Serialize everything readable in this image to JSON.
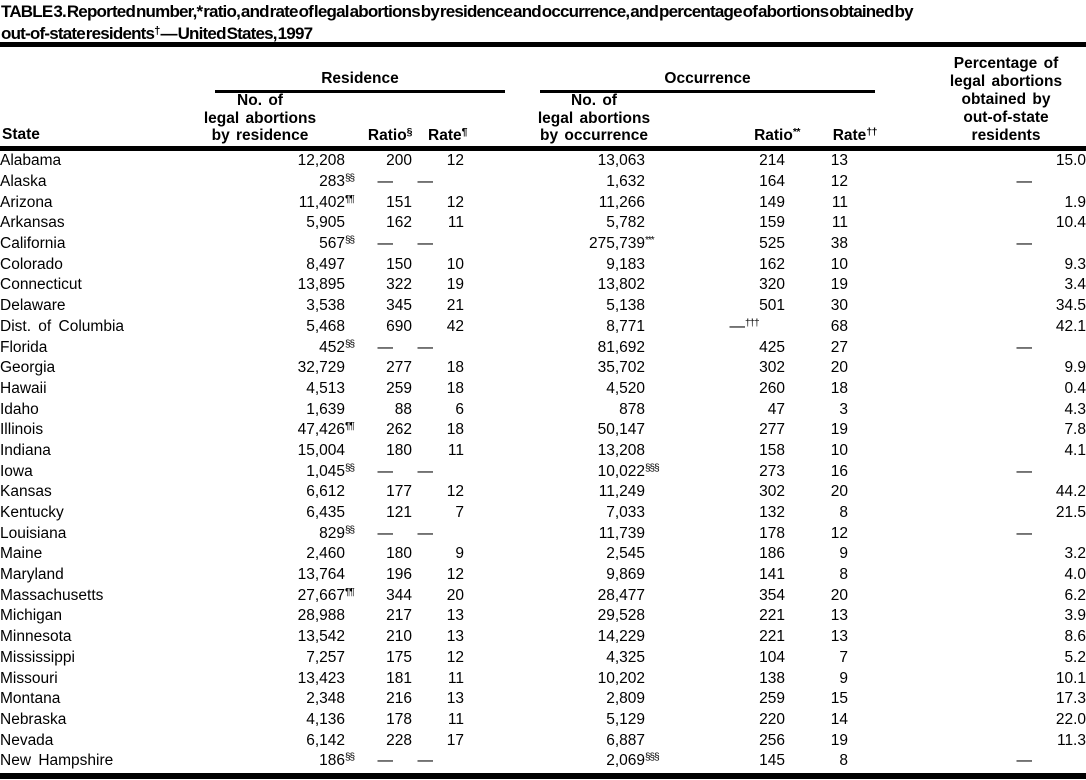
{
  "title": {
    "part1": "TABLE 3. Reported number,* ratio, and rate of legal abortions by residence and occurrence, and percentage of abortions obtained by",
    "part2_pre": "out-of-state residents",
    "part2_sup": "†",
    "part2_post": " — United States, 1997"
  },
  "table": {
    "group_headers": {
      "residence": "Residence",
      "occurrence": "Occurrence"
    },
    "columns": {
      "state": "State",
      "res_no_lines": [
        "No. of",
        "legal abortions",
        "by residence"
      ],
      "res_ratio": {
        "label": "Ratio",
        "sup": "§"
      },
      "res_rate": {
        "label": "Rate",
        "sup": "¶"
      },
      "occ_no_lines": [
        "No. of",
        "legal abortions",
        "by occurrence"
      ],
      "occ_ratio": {
        "label": "Ratio",
        "sup": "**"
      },
      "occ_rate": {
        "label": "Rate",
        "sup": "††"
      },
      "pct_lines": [
        "Percentage of",
        "legal abortions",
        "obtained by",
        "out-of-state",
        "residents"
      ]
    },
    "rows": [
      [
        "Alabama",
        "12,208",
        "200",
        "12",
        "13,063",
        "214",
        "13",
        "15.0"
      ],
      [
        "Alaska",
        [
          "283",
          "§§"
        ],
        "—",
        "—",
        "1,632",
        "164",
        "12",
        "—"
      ],
      [
        "Arizona",
        [
          "11,402",
          "¶¶"
        ],
        "151",
        "12",
        "11,266",
        "149",
        "11",
        "1.9"
      ],
      [
        "Arkansas",
        "5,905",
        "162",
        "11",
        "5,782",
        "159",
        "11",
        "10.4"
      ],
      [
        "California",
        [
          "567",
          "§§"
        ],
        "—",
        "—",
        [
          "275,739",
          "***"
        ],
        "525",
        "38",
        "—"
      ],
      [
        "Colorado",
        "8,497",
        "150",
        "10",
        "9,183",
        "162",
        "10",
        "9.3"
      ],
      [
        "Connecticut",
        "13,895",
        "322",
        "19",
        "13,802",
        "320",
        "19",
        "3.4"
      ],
      [
        "Delaware",
        "3,538",
        "345",
        "21",
        "5,138",
        "501",
        "30",
        "34.5"
      ],
      [
        "Dist. of Columbia",
        "5,468",
        "690",
        "42",
        "8,771",
        [
          "—",
          "†††"
        ],
        "68",
        "42.1"
      ],
      [
        "Florida",
        [
          "452",
          "§§"
        ],
        "—",
        "—",
        "81,692",
        "425",
        "27",
        "—"
      ],
      [
        "Georgia",
        "32,729",
        "277",
        "18",
        "35,702",
        "302",
        "20",
        "9.9"
      ],
      [
        "Hawaii",
        "4,513",
        "259",
        "18",
        "4,520",
        "260",
        "18",
        "0.4"
      ],
      [
        "Idaho",
        "1,639",
        "88",
        "6",
        "878",
        "47",
        "3",
        "4.3"
      ],
      [
        "Illinois",
        [
          "47,426",
          "¶¶"
        ],
        "262",
        "18",
        "50,147",
        "277",
        "19",
        "7.8"
      ],
      [
        "Indiana",
        "15,004",
        "180",
        "11",
        "13,208",
        "158",
        "10",
        "4.1"
      ],
      [
        "Iowa",
        [
          "1,045",
          "§§"
        ],
        "—",
        "—",
        [
          "10,022",
          "§§§"
        ],
        "273",
        "16",
        "—"
      ],
      [
        "Kansas",
        "6,612",
        "177",
        "12",
        "11,249",
        "302",
        "20",
        "44.2"
      ],
      [
        "Kentucky",
        "6,435",
        "121",
        "7",
        "7,033",
        "132",
        "8",
        "21.5"
      ],
      [
        "Louisiana",
        [
          "829",
          "§§"
        ],
        "—",
        "—",
        "11,739",
        "178",
        "12",
        "—"
      ],
      [
        "Maine",
        "2,460",
        "180",
        "9",
        "2,545",
        "186",
        "9",
        "3.2"
      ],
      [
        "Maryland",
        "13,764",
        "196",
        "12",
        "9,869",
        "141",
        "8",
        "4.0"
      ],
      [
        "Massachusetts",
        [
          "27,667",
          "¶¶"
        ],
        "344",
        "20",
        "28,477",
        "354",
        "20",
        "6.2"
      ],
      [
        "Michigan",
        "28,988",
        "217",
        "13",
        "29,528",
        "221",
        "13",
        "3.9"
      ],
      [
        "Minnesota",
        "13,542",
        "210",
        "13",
        "14,229",
        "221",
        "13",
        "8.6"
      ],
      [
        "Mississippi",
        "7,257",
        "175",
        "12",
        "4,325",
        "104",
        "7",
        "5.2"
      ],
      [
        "Missouri",
        "13,423",
        "181",
        "11",
        "10,202",
        "138",
        "9",
        "10.1"
      ],
      [
        "Montana",
        "2,348",
        "216",
        "13",
        "2,809",
        "259",
        "15",
        "17.3"
      ],
      [
        "Nebraska",
        "4,136",
        "178",
        "11",
        "5,129",
        "220",
        "14",
        "22.0"
      ],
      [
        "Nevada",
        "6,142",
        "228",
        "17",
        "6,887",
        "256",
        "19",
        "11.3"
      ],
      [
        "New Hampshire",
        [
          "186",
          "§§"
        ],
        "—",
        "—",
        [
          "2,069",
          "§§§"
        ],
        "145",
        "8",
        "—"
      ]
    ]
  }
}
